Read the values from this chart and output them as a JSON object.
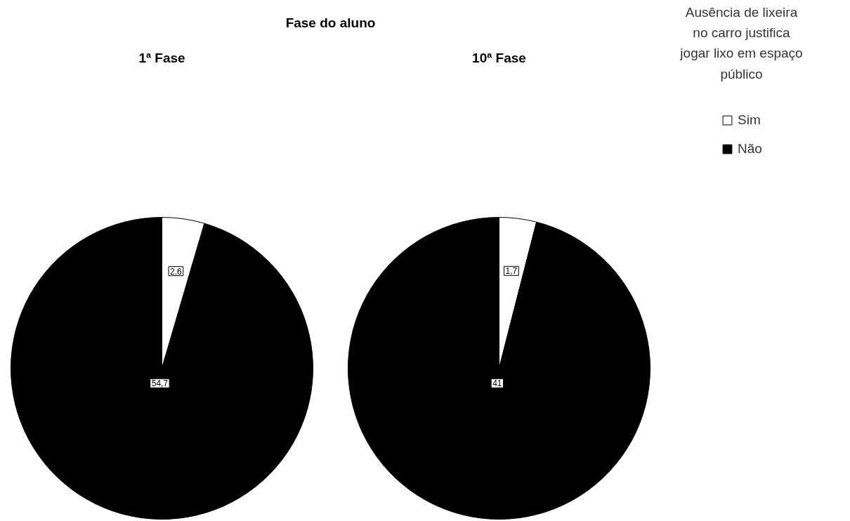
{
  "chart_data": [
    {
      "type": "pie",
      "title": "Fase do aluno",
      "subtitle": "1ª Fase",
      "categories": [
        "Sim",
        "Não"
      ],
      "values": [
        2.6,
        54.7
      ],
      "colors": [
        "#ffffff",
        "#000000"
      ],
      "value_labels": [
        "2,6",
        "54,7"
      ],
      "legend": "top right",
      "legend_title": "Ausência de lixeira no carro justifica jogar lixo em espaço público"
    },
    {
      "type": "pie",
      "subtitle": "10ª Fase",
      "values": [
        1.7,
        41
      ],
      "colors": [
        "#ffffff",
        "#000000"
      ],
      "value_labels": [
        "1,7",
        "41"
      ]
    }
  ]
}
